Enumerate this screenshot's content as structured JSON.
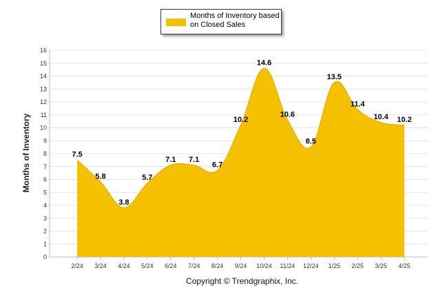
{
  "legend": {
    "label": "Months of Inventory based on Closed Sales",
    "color": "#F5C000"
  },
  "copyright": "Copyright © Trendgraphix, Inc.",
  "chart_data": {
    "type": "area",
    "ylabel": "Months of Inventory",
    "xlabel": "",
    "categories": [
      "2/24",
      "3/24",
      "4/24",
      "5/24",
      "6/24",
      "7/24",
      "8/24",
      "9/24",
      "10/24",
      "11/24",
      "12/24",
      "1/25",
      "2/25",
      "3/25",
      "4/25"
    ],
    "series": [
      {
        "name": "Months of Inventory based on Closed Sales",
        "values": [
          7.5,
          5.8,
          3.8,
          5.7,
          7.1,
          7.1,
          6.7,
          10.2,
          14.6,
          10.6,
          8.5,
          13.5,
          11.4,
          10.4,
          10.2
        ],
        "data_labels": [
          "7.5",
          "5.8",
          "3.8",
          "5.7",
          "7.1",
          "7.1",
          "6.7",
          "10.2",
          "14.6",
          "10.6",
          "8.5",
          "13.5",
          "11.4",
          "10.4",
          "10.2"
        ]
      }
    ],
    "ylim": [
      0,
      16
    ],
    "yticks": [
      0,
      1,
      2,
      3,
      4,
      5,
      6,
      7,
      8,
      9,
      10,
      11,
      12,
      13,
      14,
      15,
      16
    ],
    "grid": true,
    "legend_position": "top-center",
    "fill_color": "#F5C000"
  }
}
